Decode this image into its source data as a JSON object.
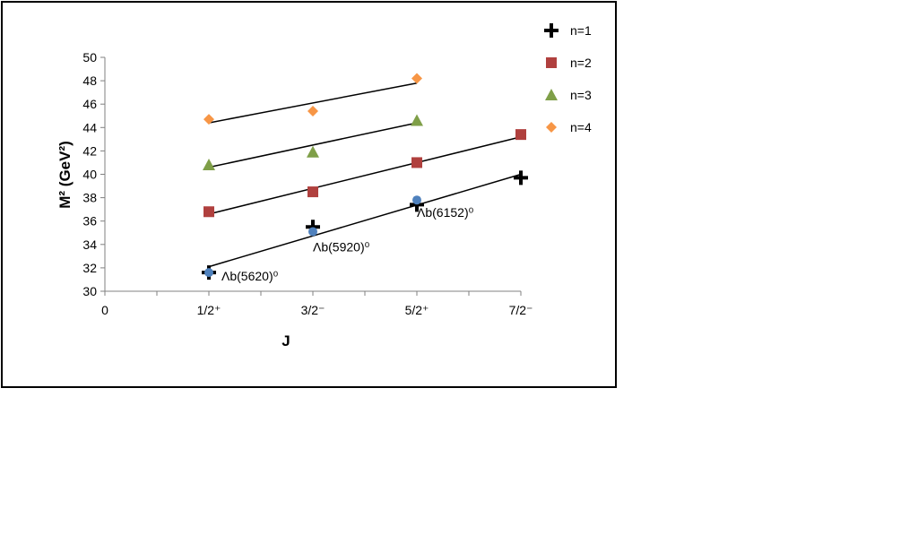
{
  "chart_data": {
    "type": "scatter",
    "xlabel": "J",
    "ylabel": "M² (GeV²)",
    "ylim": [
      30,
      50
    ],
    "yticks": [
      "30",
      "32",
      "34",
      "36",
      "38",
      "40",
      "42",
      "44",
      "46",
      "48",
      "50"
    ],
    "xticks": [
      "0",
      "1/2⁺",
      "3/2⁻",
      "5/2⁺",
      "7/2⁻"
    ],
    "grid": false,
    "legend_position": "top-right",
    "series": [
      {
        "name": "n=1",
        "marker": "plus",
        "color": "#000000",
        "x": [
          "1/2⁺",
          "3/2⁻",
          "5/2⁺",
          "7/2⁻"
        ],
        "y": [
          31.6,
          35.5,
          37.4,
          39.7
        ],
        "fit": [
          32.1,
          40.0
        ]
      },
      {
        "name": "n=2",
        "marker": "square",
        "color": "#b0403e",
        "x": [
          "1/2⁺",
          "3/2⁻",
          "5/2⁺",
          "7/2⁻"
        ],
        "y": [
          36.8,
          38.5,
          41.0,
          43.4
        ],
        "fit": [
          36.6,
          43.2
        ]
      },
      {
        "name": "n=3",
        "marker": "triangle",
        "color": "#7f9f48",
        "x": [
          "1/2⁺",
          "3/2⁻",
          "5/2⁺"
        ],
        "y": [
          40.8,
          41.9,
          44.6
        ],
        "fit": [
          40.6,
          44.4
        ]
      },
      {
        "name": "n=4",
        "marker": "diamond",
        "color": "#f79646",
        "x": [
          "1/2⁺",
          "3/2⁻",
          "5/2⁺"
        ],
        "y": [
          44.7,
          45.4,
          48.2
        ],
        "fit": [
          44.4,
          47.8
        ]
      }
    ],
    "experimental": {
      "marker": "circle",
      "color": "#4f81bd",
      "points": [
        {
          "x": "1/2⁺",
          "y": 31.6,
          "label": "Λb(5620)⁰"
        },
        {
          "x": "3/2⁻",
          "y": 35.1,
          "label": "Λb(5920)⁰"
        },
        {
          "x": "5/2⁺",
          "y": 37.8,
          "label": "Λb(6152)⁰"
        }
      ]
    }
  }
}
